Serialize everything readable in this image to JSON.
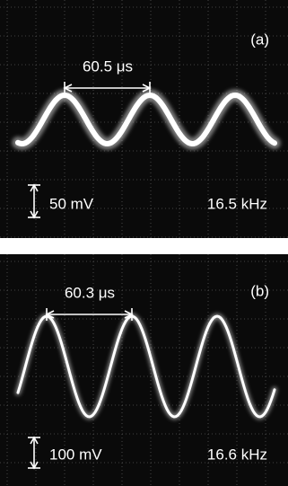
{
  "panels": [
    {
      "label": "(a)",
      "period": "60.5 μs",
      "scale": "50 mV",
      "frequency": "16.5 kHz"
    },
    {
      "label": "(b)",
      "period": "60.3 μs",
      "scale": "100 mV",
      "frequency": "16.6 kHz"
    }
  ]
}
